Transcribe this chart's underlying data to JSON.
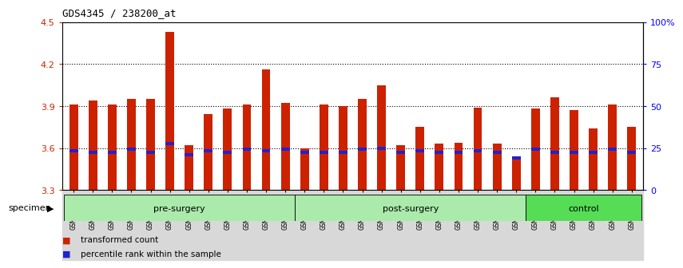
{
  "title": "GDS4345 / 238200_at",
  "samples": [
    "GSM842012",
    "GSM842013",
    "GSM842014",
    "GSM842015",
    "GSM842016",
    "GSM842017",
    "GSM842018",
    "GSM842019",
    "GSM842020",
    "GSM842021",
    "GSM842022",
    "GSM842023",
    "GSM842024",
    "GSM842025",
    "GSM842026",
    "GSM842027",
    "GSM842028",
    "GSM842029",
    "GSM842030",
    "GSM842031",
    "GSM842032",
    "GSM842033",
    "GSM842034",
    "GSM842035",
    "GSM842036",
    "GSM842037",
    "GSM842038",
    "GSM842039",
    "GSM842040",
    "GSM842041"
  ],
  "red_values": [
    3.91,
    3.94,
    3.91,
    3.95,
    3.95,
    4.43,
    3.62,
    3.84,
    3.88,
    3.91,
    4.16,
    3.92,
    3.6,
    3.91,
    3.9,
    3.95,
    4.05,
    3.62,
    3.75,
    3.63,
    3.64,
    3.89,
    3.63,
    3.52,
    3.88,
    3.96,
    3.87,
    3.74,
    3.91,
    3.75
  ],
  "blue_values": [
    3.58,
    3.57,
    3.57,
    3.59,
    3.57,
    3.63,
    3.55,
    3.58,
    3.57,
    3.59,
    3.58,
    3.59,
    3.57,
    3.57,
    3.57,
    3.59,
    3.6,
    3.57,
    3.58,
    3.57,
    3.57,
    3.58,
    3.57,
    3.53,
    3.59,
    3.57,
    3.57,
    3.57,
    3.59,
    3.57
  ],
  "groups": [
    {
      "label": "pre-surgery",
      "start": 0,
      "end": 12,
      "color": "#aaeaaa"
    },
    {
      "label": "post-surgery",
      "start": 12,
      "end": 24,
      "color": "#aaeaaa"
    },
    {
      "label": "control",
      "start": 24,
      "end": 30,
      "color": "#55dd55"
    }
  ],
  "ymin": 3.3,
  "ymax": 4.5,
  "yticks": [
    3.3,
    3.6,
    3.9,
    4.2,
    4.5
  ],
  "dotted_lines": [
    4.2,
    3.9,
    3.6
  ],
  "right_yticks": [
    0,
    25,
    50,
    75,
    100
  ],
  "right_ytick_labels": [
    "0",
    "25",
    "50",
    "75",
    "100%"
  ],
  "bar_color": "#CC2200",
  "blue_color": "#2222CC",
  "bg_color": "#FFFFFF",
  "legend_items": [
    {
      "color": "#CC2200",
      "label": "transformed count"
    },
    {
      "color": "#2222CC",
      "label": "percentile rank within the sample"
    }
  ],
  "specimen_label": "specimen"
}
